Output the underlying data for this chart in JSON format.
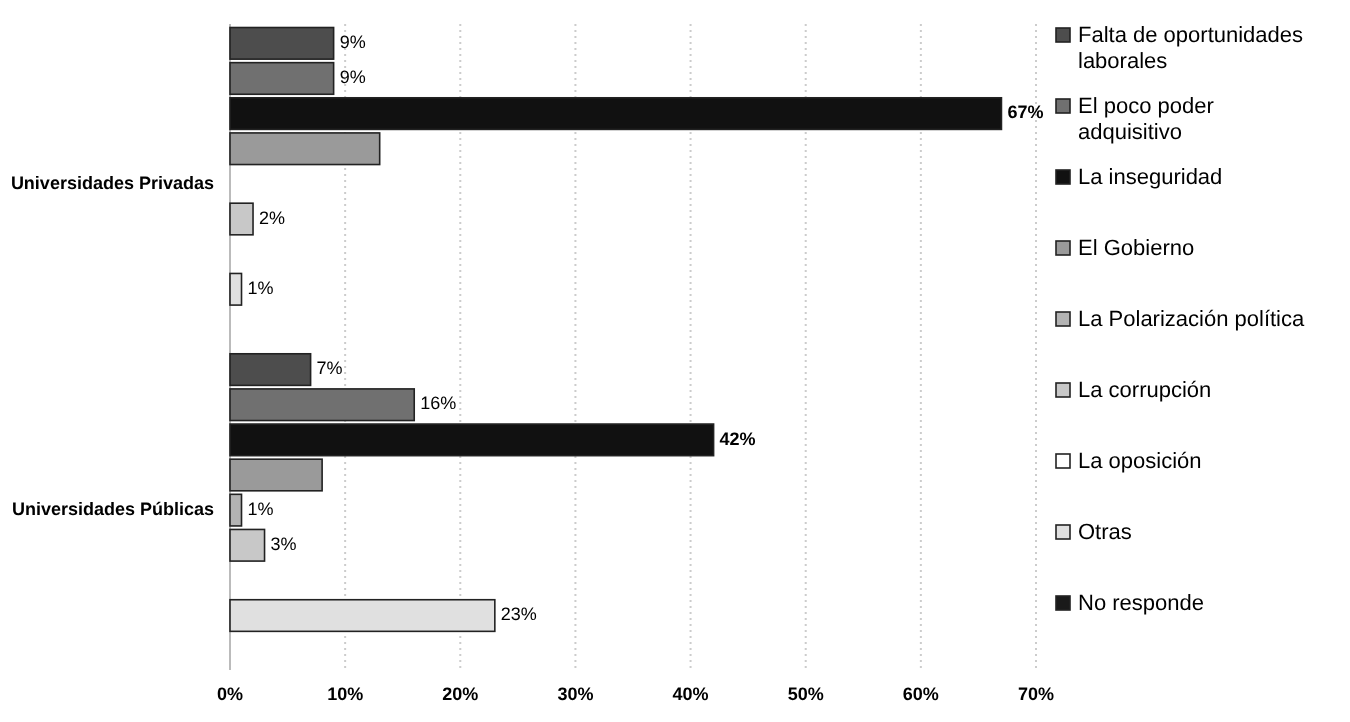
{
  "chart_data": {
    "type": "bar",
    "orientation": "horizontal",
    "categories": [
      "Universidades Privadas",
      "Universidades Públicas"
    ],
    "series": [
      {
        "name": "Falta de oportunidades laborales",
        "color": "#4d4d4d",
        "values": [
          9,
          7
        ],
        "value_labels": [
          "9%",
          "7%"
        ]
      },
      {
        "name": "El poco poder adquisitivo",
        "color": "#707070",
        "values": [
          9,
          16
        ],
        "value_labels": [
          "9%",
          "16%"
        ]
      },
      {
        "name": "La inseguridad",
        "color": "#111111",
        "values": [
          67,
          42
        ],
        "value_labels": [
          "67%",
          "42%"
        ]
      },
      {
        "name": "El Gobierno",
        "color": "#9a9a9a",
        "values": [
          13,
          8
        ],
        "value_labels": [
          null,
          null
        ]
      },
      {
        "name": "La Polarización política",
        "color": "#b3b3b3",
        "values": [
          null,
          1
        ],
        "value_labels": [
          null,
          "1%"
        ]
      },
      {
        "name": "La corrupción",
        "color": "#c8c8c8",
        "values": [
          2,
          3
        ],
        "value_labels": [
          "2%",
          "3%"
        ]
      },
      {
        "name": "La oposición",
        "color": "#ffffff",
        "values": [
          null,
          null
        ],
        "value_labels": [
          null,
          null
        ]
      },
      {
        "name": "Otras",
        "color": "#e0e0e0",
        "values": [
          1,
          23
        ],
        "value_labels": [
          "1%",
          "23%"
        ]
      },
      {
        "name": "No responde",
        "color": "#1a1a1a",
        "values": [
          null,
          null
        ],
        "value_labels": [
          null,
          null
        ]
      }
    ],
    "xlim": [
      0,
      70
    ],
    "xticks": [
      {
        "value": 0,
        "label": "0%"
      },
      {
        "value": 10,
        "label": "10%"
      },
      {
        "value": 20,
        "label": "20%"
      },
      {
        "value": 30,
        "label": "30%"
      },
      {
        "value": 40,
        "label": "40%"
      },
      {
        "value": 50,
        "label": "50%"
      },
      {
        "value": 60,
        "label": "60%"
      },
      {
        "value": 70,
        "label": "70%"
      }
    ],
    "grid": "x",
    "legend": "right"
  }
}
